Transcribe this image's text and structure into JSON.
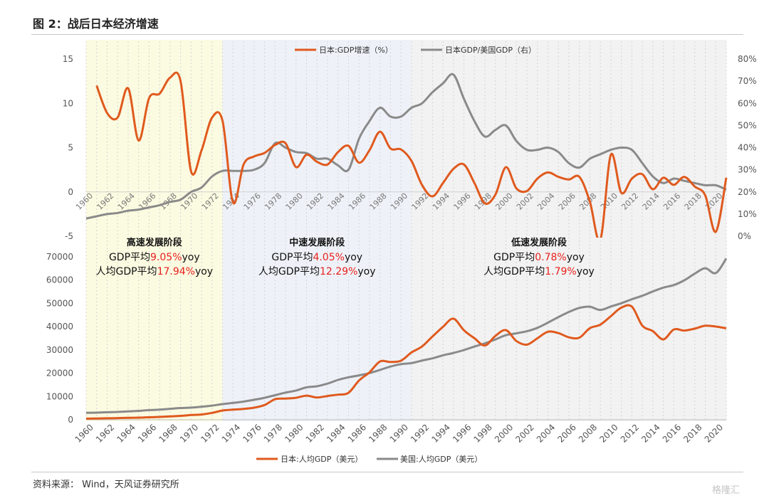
{
  "header": {
    "title": "图 2：战后日本经济增速"
  },
  "footer": {
    "source": "资料来源： Wind，天风证券研究所",
    "watermark": "格隆汇"
  },
  "stages": [
    {
      "name": "高速发展阶段",
      "line1_prefix": "GDP平均",
      "line1_value": "9.05%",
      "line1_suffix": "yoy",
      "line2_prefix": "人均GDP平均",
      "line2_value": "17.94%",
      "line2_suffix": "yoy",
      "start": 1960,
      "end": 1973,
      "color": "#fbfbe1"
    },
    {
      "name": "中速发展阶段",
      "line1_prefix": "GDP平均",
      "line1_value": "4.05%",
      "line1_suffix": "yoy",
      "line2_prefix": "人均GDP平均",
      "line2_value": "12.29%",
      "line2_suffix": "yoy",
      "start": 1973,
      "end": 1991,
      "color": "#eef2f8"
    },
    {
      "name": "低速发展阶段",
      "line1_prefix": "GDP平均",
      "line1_value": "0.78%",
      "line1_suffix": "yoy",
      "line2_prefix": "人均GDP平均",
      "line2_value": "1.79%",
      "line2_suffix": "yoy",
      "start": 1991,
      "end": 2021,
      "color": "#f2f2f2"
    }
  ],
  "colors": {
    "japan": "#e05a1e",
    "usa": "#8a8a8a",
    "highlight": "#e8211d",
    "axis_text": "#555555"
  },
  "chart_data": [
    {
      "type": "line",
      "ylim": [
        -5,
        15
      ],
      "yticks": [
        "-5",
        "0",
        "5",
        "10",
        "15"
      ],
      "y2lim": [
        0,
        80
      ],
      "y2ticks": [
        "0%",
        "10%",
        "20%",
        "30%",
        "40%",
        "50%",
        "60%",
        "70%",
        "80%"
      ],
      "xticks": [
        "1960",
        "1962",
        "1964",
        "1966",
        "1968",
        "1970",
        "1972",
        "1974",
        "1976",
        "1978",
        "1980",
        "1982",
        "1984",
        "1986",
        "1988",
        "1990",
        "1992",
        "1994",
        "1996",
        "1998",
        "2000",
        "2002",
        "2004",
        "2006",
        "2008",
        "2010",
        "2012",
        "2014",
        "2016",
        "2018",
        "2020"
      ],
      "legend": "top-center",
      "series": [
        {
          "name": "日本:GDP增速（%）",
          "axis": "left",
          "x": [
            1961,
            1962,
            1963,
            1964,
            1965,
            1966,
            1967,
            1968,
            1969,
            1970,
            1971,
            1972,
            1973,
            1974,
            1975,
            1976,
            1977,
            1978,
            1979,
            1980,
            1981,
            1982,
            1983,
            1984,
            1985,
            1986,
            1987,
            1988,
            1989,
            1990,
            1991,
            1992,
            1993,
            1994,
            1995,
            1996,
            1997,
            1998,
            1999,
            2000,
            2001,
            2002,
            2003,
            2004,
            2005,
            2006,
            2007,
            2008,
            2009,
            2010,
            2011,
            2012,
            2013,
            2014,
            2015,
            2016,
            2017,
            2018,
            2019,
            2020,
            2021
          ],
          "values": [
            12,
            8.9,
            8.4,
            11.7,
            5.8,
            10.6,
            11.1,
            12.9,
            12.5,
            2.3,
            4.7,
            8.4,
            8.0,
            -1.2,
            3.1,
            4.0,
            4.4,
            5.3,
            5.5,
            2.8,
            4.2,
            3.4,
            3.1,
            4.5,
            5.2,
            3.3,
            4.7,
            6.8,
            4.9,
            4.8,
            3.5,
            0.8,
            -0.5,
            1.0,
            2.6,
            3.1,
            1.0,
            -1.3,
            -0.3,
            2.8,
            0.4,
            0.1,
            1.5,
            2.2,
            1.7,
            1.4,
            1.7,
            -1.1,
            -5.4,
            4.2,
            -0.1,
            1.5,
            2.0,
            0.3,
            1.6,
            0.8,
            1.7,
            0.6,
            -0.4,
            -4.5,
            1.6
          ]
        },
        {
          "name": "日本GDP/美国GDP（右）",
          "axis": "right",
          "x": [
            1960,
            1961,
            1962,
            1963,
            1964,
            1965,
            1966,
            1967,
            1968,
            1969,
            1970,
            1971,
            1972,
            1973,
            1974,
            1975,
            1976,
            1977,
            1978,
            1979,
            1980,
            1981,
            1982,
            1983,
            1984,
            1985,
            1986,
            1987,
            1988,
            1989,
            1990,
            1991,
            1992,
            1993,
            1994,
            1995,
            1996,
            1997,
            1998,
            1999,
            2000,
            2001,
            2002,
            2003,
            2004,
            2005,
            2006,
            2007,
            2008,
            2009,
            2010,
            2011,
            2012,
            2013,
            2014,
            2015,
            2016,
            2017,
            2018,
            2019,
            2020,
            2021
          ],
          "values": [
            8,
            9,
            10,
            10.5,
            11.5,
            12,
            13,
            14,
            15.5,
            16.5,
            20,
            22,
            27,
            29.5,
            29.5,
            29.5,
            30,
            33,
            42,
            40,
            38,
            37.5,
            35,
            35,
            32,
            30,
            44,
            52,
            58,
            54,
            54,
            58,
            60,
            65,
            69,
            73,
            62,
            52,
            45,
            48,
            50,
            43,
            39,
            39,
            40,
            38,
            33,
            31,
            35,
            37,
            39,
            40,
            39,
            33,
            27,
            24,
            26,
            25,
            24,
            23,
            23,
            21
          ]
        }
      ]
    },
    {
      "type": "line",
      "ylim": [
        0,
        70000
      ],
      "yticks": [
        "0",
        "10000",
        "20000",
        "30000",
        "40000",
        "50000",
        "60000",
        "70000"
      ],
      "xticks": [
        "1960",
        "1962",
        "1964",
        "1966",
        "1968",
        "1970",
        "1972",
        "1974",
        "1976",
        "1978",
        "1980",
        "1982",
        "1984",
        "1986",
        "1988",
        "1990",
        "1992",
        "1994",
        "1996",
        "1998",
        "2000",
        "2002",
        "2004",
        "2006",
        "2008",
        "2010",
        "2012",
        "2014",
        "2016",
        "2018",
        "2020"
      ],
      "legend": "bottom-center",
      "series": [
        {
          "name": "日本:人均GDP（美元）",
          "x": [
            1960,
            1961,
            1962,
            1963,
            1964,
            1965,
            1966,
            1967,
            1968,
            1969,
            1970,
            1971,
            1972,
            1973,
            1974,
            1975,
            1976,
            1977,
            1978,
            1979,
            1980,
            1981,
            1982,
            1983,
            1984,
            1985,
            1986,
            1987,
            1988,
            1989,
            1990,
            1991,
            1992,
            1993,
            1994,
            1995,
            1996,
            1997,
            1998,
            1999,
            2000,
            2001,
            2002,
            2003,
            2004,
            2005,
            2006,
            2007,
            2008,
            2009,
            2010,
            2011,
            2012,
            2013,
            2014,
            2015,
            2016,
            2017,
            2018,
            2019,
            2020,
            2021
          ],
          "values": [
            480,
            560,
            640,
            720,
            840,
            920,
            1060,
            1230,
            1450,
            1670,
            2040,
            2270,
            2950,
            3970,
            4350,
            4670,
            5200,
            6340,
            8820,
            9100,
            9460,
            10360,
            9580,
            10210,
            10790,
            11580,
            16880,
            20350,
            25050,
            24820,
            25370,
            28930,
            31460,
            35770,
            39930,
            43440,
            38440,
            35020,
            31900,
            36030,
            38530,
            33850,
            32290,
            35000,
            37810,
            37220,
            35430,
            35280,
            39340,
            40860,
            44510,
            48170,
            48600,
            40450,
            38100,
            34520,
            38790,
            38330,
            39160,
            40410,
            40040,
            39310
          ]
        },
        {
          "name": "美国:人均GDP（美元）",
          "x": [
            1960,
            1961,
            1962,
            1963,
            1964,
            1965,
            1966,
            1967,
            1968,
            1969,
            1970,
            1971,
            1972,
            1973,
            1974,
            1975,
            1976,
            1977,
            1978,
            1979,
            1980,
            1981,
            1982,
            1983,
            1984,
            1985,
            1986,
            1987,
            1988,
            1989,
            1990,
            1991,
            1992,
            1993,
            1994,
            1995,
            1996,
            1997,
            1998,
            1999,
            2000,
            2001,
            2002,
            2003,
            2004,
            2005,
            2006,
            2007,
            2008,
            2009,
            2010,
            2011,
            2012,
            2013,
            2014,
            2015,
            2016,
            2017,
            2018,
            2019,
            2020,
            2021
          ],
          "values": [
            3010,
            3070,
            3240,
            3370,
            3570,
            3830,
            4150,
            4330,
            4700,
            5030,
            5230,
            5610,
            6090,
            6730,
            7240,
            7800,
            8590,
            9450,
            10560,
            11670,
            12550,
            13950,
            14400,
            15540,
            17120,
            18240,
            19070,
            20040,
            21420,
            22860,
            23890,
            24340,
            25420,
            26390,
            27690,
            28690,
            29970,
            31460,
            32850,
            34510,
            36330,
            37130,
            38020,
            39500,
            41710,
            44120,
            46300,
            48050,
            48570,
            47190,
            48650,
            50070,
            51780,
            53290,
            55120,
            56760,
            57870,
            59910,
            62800,
            65100,
            63030,
            69290
          ]
        }
      ]
    }
  ]
}
